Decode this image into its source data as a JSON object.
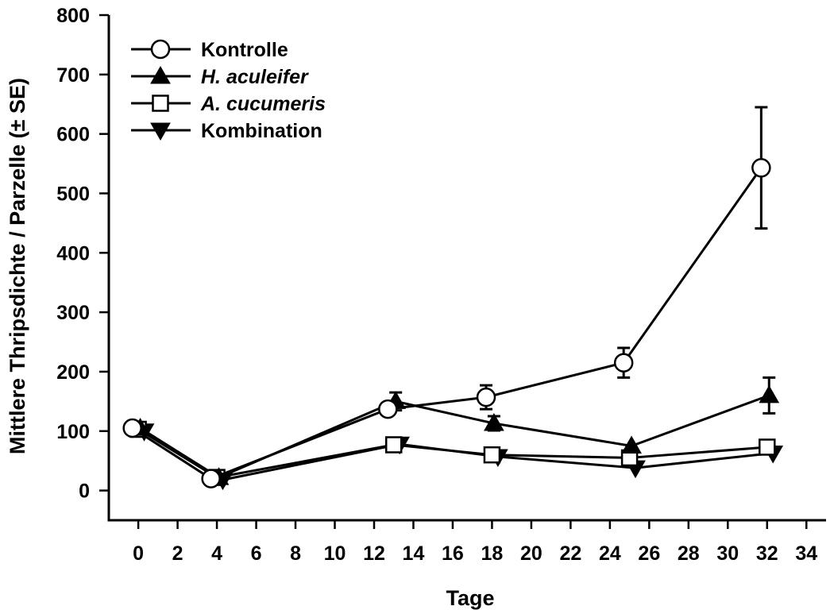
{
  "chart_data": {
    "type": "line",
    "xlabel": "Tage",
    "ylabel": "Mittlere Thripsdichte / Parzelle (± SE)",
    "xlim": [
      -1.5,
      35
    ],
    "ylim": [
      -50,
      800
    ],
    "xticks": [
      0,
      2,
      4,
      6,
      8,
      10,
      12,
      14,
      16,
      18,
      20,
      22,
      24,
      26,
      28,
      30,
      32,
      34
    ],
    "yticks": [
      0,
      100,
      200,
      300,
      400,
      500,
      600,
      700,
      800
    ],
    "grid": false,
    "legend_position": "top-left",
    "series": [
      {
        "name": "Kontrolle",
        "italic": false,
        "marker": "circle-open",
        "x": [
          -0.3,
          3.7,
          12.7,
          17.7,
          24.7,
          31.7
        ],
        "y": [
          105,
          20,
          137,
          157,
          215,
          543
        ],
        "err": [
          0,
          0,
          0,
          20,
          25,
          102
        ]
      },
      {
        "name": "H. aculeifer",
        "italic": true,
        "marker": "triangle-up-filled",
        "x": [
          0.1,
          4.1,
          13.1,
          18.1,
          25.1,
          32.1
        ],
        "y": [
          105,
          22,
          150,
          113,
          75,
          160
        ],
        "err": [
          0,
          0,
          15,
          12,
          0,
          30
        ]
      },
      {
        "name": "A. cucumeris",
        "italic": false,
        "italic_note": "",
        "marker": "square-open",
        "x": [
          0.0,
          4.0,
          13.0,
          18.0,
          25.0,
          32.0
        ],
        "y": [
          103,
          22,
          77,
          60,
          55,
          73
        ],
        "err": [
          0,
          0,
          0,
          0,
          0,
          0
        ]
      },
      {
        "name": "Kombination",
        "italic": false,
        "marker": "triangle-down-filled",
        "x": [
          0.3,
          4.3,
          13.3,
          18.3,
          25.3,
          32.3
        ],
        "y": [
          100,
          18,
          78,
          57,
          38,
          63
        ],
        "err": [
          0,
          0,
          0,
          0,
          0,
          0
        ]
      }
    ]
  }
}
